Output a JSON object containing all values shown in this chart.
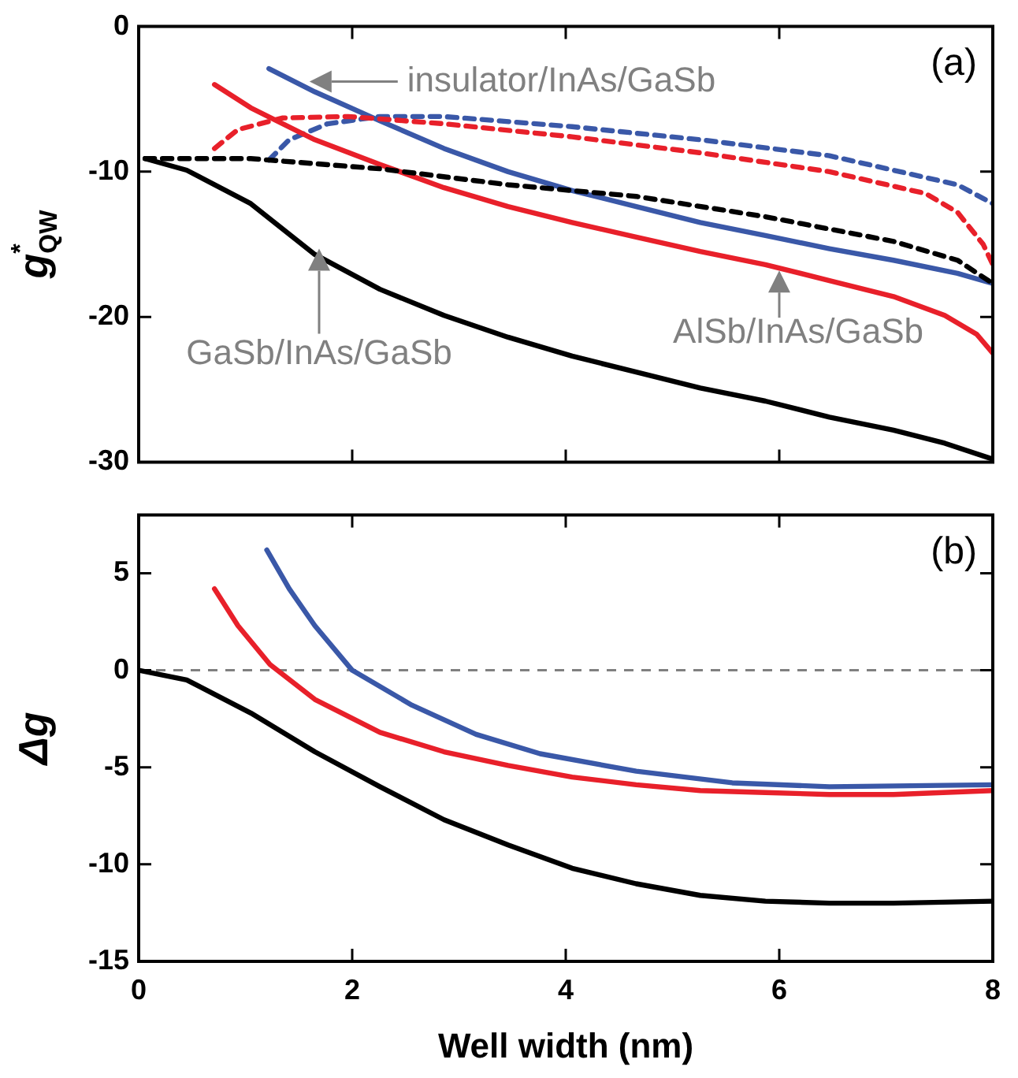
{
  "chart_data": [
    {
      "type": "line",
      "ylabel": "g$^{*}$$_{QW}$",
      "xlim": [
        0,
        8
      ],
      "xticks": [
        0,
        2,
        4,
        6,
        8
      ],
      "ylim": [
        -30,
        0
      ],
      "yticks": [
        0,
        -10,
        -20,
        -30
      ],
      "tick_labels": "y",
      "grid": false,
      "legend": false,
      "marker": "none",
      "annotations": [
        "(a)",
        {
          "text": "insulator/InAs/GaSb",
          "x": 1.6,
          "y": -3.8
        },
        {
          "text": "GaSb/InAs/GaSb",
          "x": 1.69,
          "y": -15.3
        },
        {
          "text": "AlSb/InAs/GaSb",
          "x": 6.0,
          "y": -16.8
        }
      ],
      "series": [
        {
          "color": "#000000",
          "line_style": "solid",
          "x": [
            0.06,
            0.45,
            1.05,
            1.65,
            2.26,
            2.86,
            3.46,
            4.06,
            4.66,
            5.26,
            5.87,
            6.47,
            7.07,
            7.55,
            8
          ],
          "values": [
            -9.1,
            -9.9,
            -12.2,
            -15.7,
            -18.1,
            -19.9,
            -21.4,
            -22.7,
            -23.8,
            -24.9,
            -25.8,
            -26.9,
            -27.8,
            -28.7,
            -29.8
          ]
        },
        {
          "color": "#000000",
          "line_style": "dashed",
          "x": [
            0.06,
            1.05,
            2.26,
            3.46,
            4.66,
            5.87,
            7.07,
            7.67,
            8
          ],
          "values": [
            -9.1,
            -9.1,
            -9.8,
            -10.9,
            -11.7,
            -13.1,
            -14.8,
            -16.1,
            -17.7
          ]
        },
        {
          "color": "#e8202a",
          "line_style": "solid",
          "x": [
            0.71,
            1.05,
            1.65,
            2.26,
            2.86,
            3.46,
            4.06,
            4.66,
            5.26,
            5.87,
            6.47,
            7.07,
            7.55,
            7.85,
            8
          ],
          "values": [
            -4.0,
            -5.6,
            -7.8,
            -9.5,
            -11.1,
            -12.4,
            -13.5,
            -14.5,
            -15.5,
            -16.4,
            -17.5,
            -18.6,
            -19.9,
            -21.2,
            -22.5
          ]
        },
        {
          "color": "#e8202a",
          "line_style": "dashed",
          "x": [
            0.71,
            0.93,
            1.35,
            1.96,
            2.86,
            4.06,
            5.26,
            6.47,
            7.37,
            7.67,
            7.91,
            8
          ],
          "values": [
            -8.4,
            -7.1,
            -6.3,
            -6.2,
            -6.7,
            -7.6,
            -8.7,
            -10.0,
            -11.5,
            -12.8,
            -15.0,
            -16.4
          ]
        },
        {
          "color": "#3a58a8",
          "line_style": "solid",
          "x": [
            1.22,
            1.65,
            2.26,
            2.86,
            3.46,
            4.06,
            4.66,
            5.26,
            5.87,
            6.47,
            7.07,
            7.67,
            8
          ],
          "values": [
            -2.9,
            -4.5,
            -6.5,
            -8.4,
            -10.0,
            -11.3,
            -12.4,
            -13.5,
            -14.4,
            -15.3,
            -16.1,
            -17.0,
            -17.7
          ]
        },
        {
          "color": "#3a58a8",
          "line_style": "dashed",
          "x": [
            1.22,
            1.41,
            1.77,
            2.26,
            2.86,
            4.06,
            5.26,
            6.47,
            7.67,
            8
          ],
          "values": [
            -9.2,
            -7.8,
            -6.7,
            -6.2,
            -6.2,
            -6.9,
            -7.8,
            -8.9,
            -10.9,
            -12.2
          ]
        }
      ]
    },
    {
      "type": "line",
      "xlabel": "Well width (nm)",
      "ylabel": "Δg",
      "xlim": [
        0,
        8
      ],
      "xticks": [
        0,
        2,
        4,
        6,
        8
      ],
      "ylim": [
        -15,
        8
      ],
      "yticks": [
        5,
        0,
        -5,
        -10,
        -15
      ],
      "grid": false,
      "legend": false,
      "marker": "none",
      "annotations": [
        "(b)"
      ],
      "ref_lines": [
        {
          "axis": "y",
          "value": 0,
          "color": "#808080",
          "line_style": "dashed"
        }
      ],
      "series": [
        {
          "color": "#000000",
          "line_style": "solid",
          "x": [
            0,
            0.45,
            1.05,
            1.65,
            2.26,
            2.86,
            3.46,
            4.06,
            4.66,
            5.26,
            5.87,
            6.47,
            7.07,
            8
          ],
          "values": [
            0,
            -0.5,
            -2.2,
            -4.2,
            -6.0,
            -7.7,
            -9.0,
            -10.2,
            -11.0,
            -11.6,
            -11.9,
            -12.0,
            -12.0,
            -11.9
          ]
        },
        {
          "color": "#e8202a",
          "line_style": "solid",
          "x": [
            0.71,
            0.93,
            1.23,
            1.65,
            2.26,
            2.86,
            3.46,
            4.06,
            4.66,
            5.26,
            5.87,
            6.47,
            7.07,
            8
          ],
          "values": [
            4.2,
            2.3,
            0.3,
            -1.5,
            -3.2,
            -4.2,
            -4.9,
            -5.5,
            -5.9,
            -6.2,
            -6.3,
            -6.4,
            -6.4,
            -6.2
          ]
        },
        {
          "color": "#3a58a8",
          "line_style": "solid",
          "x": [
            1.2,
            1.41,
            1.65,
            2.0,
            2.56,
            3.16,
            3.76,
            4.66,
            5.56,
            6.47,
            8
          ],
          "values": [
            6.2,
            4.2,
            2.3,
            0,
            -1.8,
            -3.3,
            -4.3,
            -5.2,
            -5.8,
            -6.0,
            -5.9
          ]
        }
      ]
    }
  ]
}
